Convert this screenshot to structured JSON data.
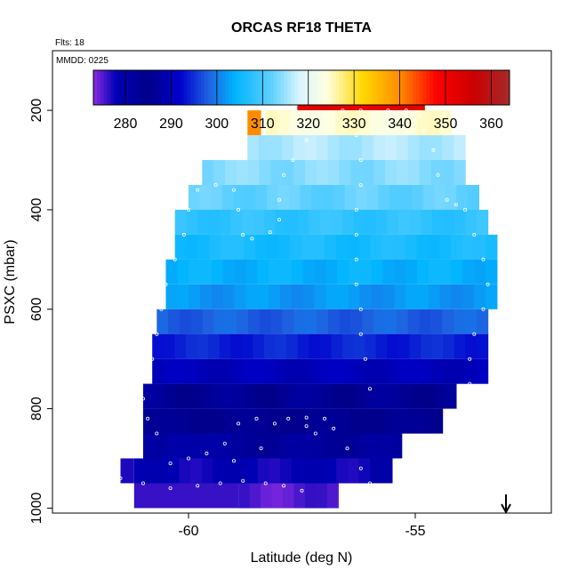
{
  "chart_data": {
    "type": "heatmap",
    "title": "ORCAS RF18 THETA",
    "flts_label": "Flts: 18",
    "mmdd_label": "MMDD: 0225",
    "xlabel": "Latitude (deg N)",
    "ylabel": "PSXC (mbar)",
    "xlim": [
      -63,
      -52
    ],
    "ylim": [
      1010,
      80
    ],
    "y_reversed": true,
    "x_ticks": [
      -60,
      -55
    ],
    "y_ticks": [
      200,
      400,
      600,
      800,
      1000
    ],
    "colorbar": {
      "min": 273,
      "max": 364,
      "ticks": [
        280,
        290,
        300,
        310,
        320,
        330,
        340,
        350,
        360
      ],
      "stops": [
        [
          273,
          "#8a2be2"
        ],
        [
          278,
          "#0000b4"
        ],
        [
          285,
          "#00008b"
        ],
        [
          292,
          "#0000cd"
        ],
        [
          298,
          "#1e60e0"
        ],
        [
          304,
          "#00b4ff"
        ],
        [
          312,
          "#5fd0ff"
        ],
        [
          318,
          "#d8f4ff"
        ],
        [
          324,
          "#ffffe0"
        ],
        [
          332,
          "#ffd700"
        ],
        [
          340,
          "#ff8c00"
        ],
        [
          348,
          "#ff0000"
        ],
        [
          356,
          "#cc0000"
        ],
        [
          364,
          "#a52a2a"
        ]
      ]
    },
    "pressure_levels": [
      175,
      225,
      275,
      325,
      375,
      425,
      475,
      525,
      575,
      625,
      675,
      725,
      775,
      825,
      875,
      925,
      975
    ],
    "rows": [
      {
        "p": 175,
        "x0": -57.6,
        "x1": -54.8,
        "theta": 352
      },
      {
        "p": 225,
        "x0": -58.3,
        "x1": -54.2,
        "theta": 324
      },
      {
        "p": 275,
        "x0": -58.7,
        "x1": -53.9,
        "theta": 316
      },
      {
        "p": 325,
        "x0": -59.7,
        "x1": -53.9,
        "theta": 314
      },
      {
        "p": 375,
        "x0": -60.0,
        "x1": -53.6,
        "theta": 312
      },
      {
        "p": 425,
        "x0": -60.3,
        "x1": -53.4,
        "theta": 308
      },
      {
        "p": 475,
        "x0": -60.3,
        "x1": -53.2,
        "theta": 306
      },
      {
        "p": 525,
        "x0": -60.5,
        "x1": -53.2,
        "theta": 304
      },
      {
        "p": 575,
        "x0": -60.5,
        "x1": -53.2,
        "theta": 302
      },
      {
        "p": 625,
        "x0": -60.7,
        "x1": -53.4,
        "theta": 298
      },
      {
        "p": 675,
        "x0": -60.8,
        "x1": -53.4,
        "theta": 294
      },
      {
        "p": 725,
        "x0": -60.8,
        "x1": -53.4,
        "theta": 290
      },
      {
        "p": 775,
        "x0": -61.0,
        "x1": -54.1,
        "theta": 286
      },
      {
        "p": 825,
        "x0": -61.0,
        "x1": -54.4,
        "theta": 284
      },
      {
        "p": 875,
        "x0": -61.0,
        "x1": -55.3,
        "theta": 282
      },
      {
        "p": 925,
        "x0": -61.2,
        "x1": -56.0,
        "theta": 278
      },
      {
        "p": 975,
        "x0": -58.9,
        "x1": -56.7,
        "theta": 275
      }
    ],
    "cells": [
      {
        "x0": -61.2,
        "x1": -58.9,
        "p": 975,
        "theta": 276
      },
      {
        "x0": -61.5,
        "x1": -61.2,
        "p": 925,
        "theta": 277
      },
      {
        "x0": -60.5,
        "x1": -59.2,
        "p": 875,
        "theta": 280
      },
      {
        "x0": -56.0,
        "x1": -55.5,
        "p": 925,
        "theta": 288
      },
      {
        "x0": -58.7,
        "x1": -58.4,
        "p": 225,
        "theta": 340
      }
    ],
    "flight_track": [
      [
        -56.0,
        950
      ],
      [
        -56.2,
        920
      ],
      [
        -56.5,
        880
      ],
      [
        -56.8,
        840
      ],
      [
        -57.0,
        820
      ],
      [
        -57.4,
        818
      ],
      [
        -57.8,
        820
      ],
      [
        -58.1,
        830
      ],
      [
        -58.5,
        820
      ],
      [
        -58.9,
        830
      ],
      [
        -59.2,
        870
      ],
      [
        -59.6,
        890
      ],
      [
        -60.0,
        900
      ],
      [
        -60.4,
        910
      ],
      [
        -60.7,
        850
      ],
      [
        -60.9,
        820
      ],
      [
        -61.2,
        830
      ],
      [
        -61.0,
        780
      ],
      [
        -61.0,
        740
      ],
      [
        -60.8,
        700
      ],
      [
        -60.7,
        650
      ],
      [
        -60.6,
        600
      ],
      [
        -60.5,
        550
      ],
      [
        -60.3,
        500
      ],
      [
        -60.1,
        450
      ],
      [
        -60.0,
        400
      ],
      [
        -59.8,
        360
      ],
      [
        -59.4,
        350
      ],
      [
        -59.0,
        360
      ],
      [
        -58.9,
        400
      ],
      [
        -58.8,
        450
      ],
      [
        -58.6,
        458
      ],
      [
        -58.2,
        445
      ],
      [
        -58.0,
        420
      ],
      [
        -58.0,
        380
      ],
      [
        -57.9,
        330
      ],
      [
        -57.7,
        300
      ],
      [
        -57.4,
        260
      ],
      [
        -57.2,
        230
      ],
      [
        -57.0,
        210
      ],
      [
        -56.6,
        200
      ],
      [
        -56.2,
        200
      ],
      [
        -55.6,
        200
      ],
      [
        -55.2,
        200
      ],
      [
        -54.9,
        210
      ],
      [
        -54.8,
        240
      ],
      [
        -54.6,
        280
      ],
      [
        -54.5,
        330
      ],
      [
        -54.3,
        380
      ],
      [
        -54.1,
        390
      ],
      [
        -53.9,
        400
      ],
      [
        -53.7,
        450
      ],
      [
        -53.5,
        500
      ],
      [
        -53.4,
        550
      ],
      [
        -53.5,
        600
      ],
      [
        -53.7,
        650
      ],
      [
        -53.8,
        700
      ],
      [
        -53.8,
        750
      ],
      [
        -56.0,
        760
      ],
      [
        -56.1,
        700
      ],
      [
        -56.2,
        650
      ],
      [
        -56.2,
        600
      ],
      [
        -56.3,
        550
      ],
      [
        -56.3,
        500
      ],
      [
        -56.3,
        450
      ],
      [
        -56.3,
        400
      ],
      [
        -56.2,
        350
      ],
      [
        -56.2,
        300
      ],
      [
        -56.3,
        250
      ],
      [
        -57.5,
        965
      ],
      [
        -57.9,
        955
      ],
      [
        -58.3,
        950
      ],
      [
        -58.8,
        945
      ],
      [
        -59.3,
        950
      ],
      [
        -59.8,
        955
      ],
      [
        -60.4,
        960
      ],
      [
        -61.0,
        950
      ],
      [
        -61.5,
        940
      ],
      [
        -61.7,
        955
      ],
      [
        -56.5,
        970
      ],
      [
        -56.2,
        985
      ],
      [
        -56.0,
        990
      ],
      [
        -57.4,
        835
      ],
      [
        -57.2,
        850
      ],
      [
        -58.4,
        880
      ],
      [
        -59.0,
        905
      ]
    ],
    "arrow_x": -53.0
  }
}
